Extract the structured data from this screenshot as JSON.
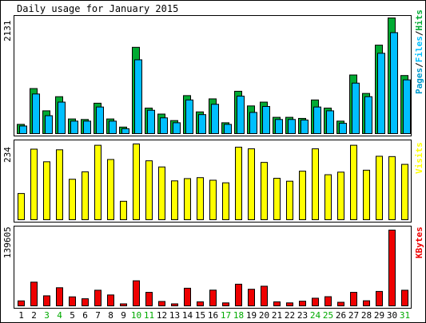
{
  "title": "Daily usage for January 2015",
  "colors": {
    "background": "#ffffff",
    "frame": "#000000",
    "hits": "#00aa33",
    "files": "#00bfff",
    "pages": "#0099cc",
    "visits": "#ffff00",
    "kbytes": "#ee0000",
    "weekday_label": "#000000",
    "weekend_label": "#00aa00"
  },
  "panels": {
    "top": {
      "max_label": "2131",
      "legend": [
        "Pages",
        "Files",
        "Hits"
      ]
    },
    "middle": {
      "max_label": "234",
      "legend": "Visits"
    },
    "bottom": {
      "max_label": "139605",
      "legend": "KBytes"
    }
  },
  "chart_data": [
    {
      "type": "bar",
      "title": "Daily usage for January 2015",
      "categories": [
        "1",
        "2",
        "3",
        "4",
        "5",
        "6",
        "7",
        "8",
        "9",
        "10",
        "11",
        "12",
        "13",
        "14",
        "15",
        "16",
        "17",
        "18",
        "19",
        "20",
        "21",
        "22",
        "23",
        "24",
        "25",
        "26",
        "27",
        "28",
        "29",
        "30",
        "31"
      ],
      "weekend_days": [
        3,
        4,
        10,
        11,
        17,
        18,
        24,
        25,
        31
      ],
      "ylim": [
        0,
        2131
      ],
      "series": [
        {
          "name": "Hits",
          "values": [
            170,
            830,
            420,
            680,
            270,
            260,
            560,
            270,
            120,
            1590,
            470,
            360,
            240,
            700,
            400,
            640,
            200,
            780,
            510,
            580,
            300,
            300,
            280,
            620,
            470,
            230,
            1080,
            740,
            1630,
            2131,
            1070
          ]
        },
        {
          "name": "Files",
          "values": [
            140,
            730,
            330,
            580,
            230,
            230,
            490,
            230,
            90,
            1360,
            430,
            290,
            200,
            620,
            350,
            540,
            170,
            690,
            390,
            500,
            260,
            260,
            250,
            490,
            420,
            190,
            930,
            680,
            1480,
            1860,
            990
          ]
        },
        {
          "name": "Pages",
          "values": [
            140,
            730,
            330,
            580,
            230,
            230,
            490,
            230,
            90,
            1360,
            430,
            290,
            200,
            620,
            350,
            540,
            170,
            690,
            390,
            500,
            260,
            260,
            250,
            490,
            420,
            190,
            930,
            680,
            1480,
            1860,
            990
          ]
        }
      ]
    },
    {
      "type": "bar",
      "title": "Visits",
      "categories": [
        "1",
        "2",
        "3",
        "4",
        "5",
        "6",
        "7",
        "8",
        "9",
        "10",
        "11",
        "12",
        "13",
        "14",
        "15",
        "16",
        "17",
        "18",
        "19",
        "20",
        "21",
        "22",
        "23",
        "24",
        "25",
        "26",
        "27",
        "28",
        "29",
        "30",
        "31"
      ],
      "ylim": [
        0,
        234
      ],
      "series": [
        {
          "name": "Visits",
          "values": [
            81,
            218,
            179,
            216,
            125,
            148,
            230,
            186,
            57,
            234,
            182,
            163,
            120,
            127,
            130,
            122,
            114,
            224,
            219,
            177,
            128,
            119,
            150,
            219,
            139,
            147,
            230,
            153,
            196,
            195,
            171
          ]
        }
      ]
    },
    {
      "type": "bar",
      "title": "KBytes",
      "categories": [
        "1",
        "2",
        "3",
        "4",
        "5",
        "6",
        "7",
        "8",
        "9",
        "10",
        "11",
        "12",
        "13",
        "14",
        "15",
        "16",
        "17",
        "18",
        "19",
        "20",
        "21",
        "22",
        "23",
        "24",
        "25",
        "26",
        "27",
        "28",
        "29",
        "30",
        "31"
      ],
      "ylim": [
        0,
        139605
      ],
      "series": [
        {
          "name": "KBytes",
          "values": [
            9200,
            43700,
            18500,
            33400,
            16600,
            13100,
            28800,
            20100,
            3700,
            46200,
            24900,
            8100,
            3700,
            32500,
            7400,
            29000,
            5500,
            39900,
            30600,
            36200,
            7400,
            5500,
            8600,
            14100,
            16900,
            6600,
            24900,
            9400,
            26600,
            139605,
            28800
          ]
        }
      ]
    }
  ]
}
